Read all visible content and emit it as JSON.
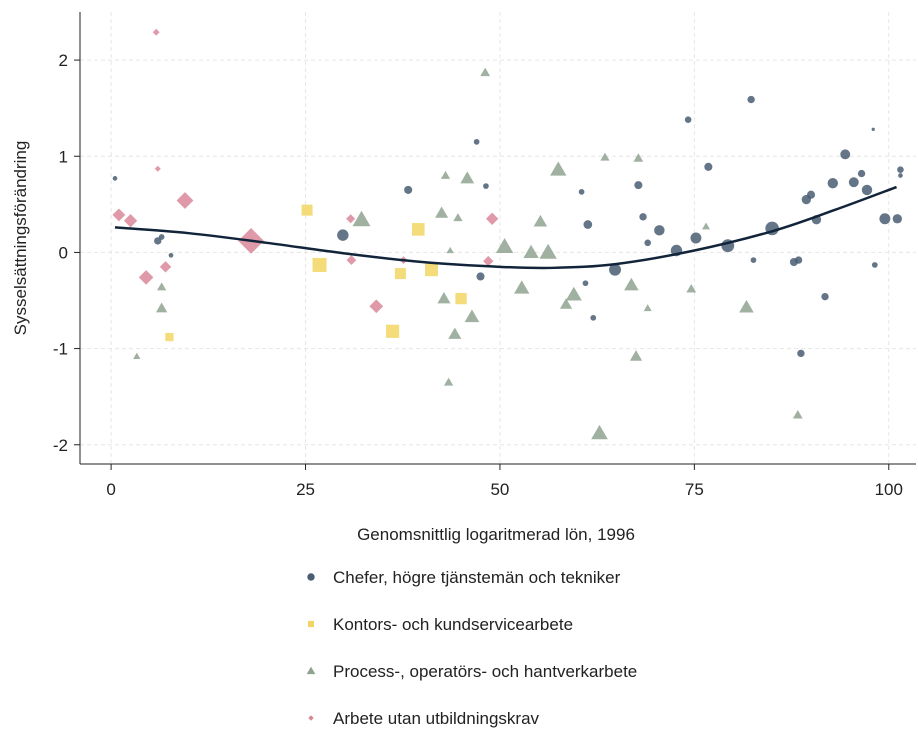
{
  "chart_data": {
    "type": "scatter",
    "title": "",
    "xlabel": "Genomsnittlig logaritmerad lön, 1996",
    "ylabel": "Sysselsättningsförändring",
    "xlim": [
      -4,
      103.5
    ],
    "ylim": [
      -2.2,
      2.5
    ],
    "xticks": [
      0,
      25,
      50,
      75,
      100
    ],
    "yticks": [
      -2,
      -1,
      0,
      1,
      2
    ],
    "grid": true,
    "legend_position": "bottom",
    "series": [
      {
        "name": "Chefer, högre tjänstemän och tekniker",
        "marker": "circle",
        "color": "#4a5d73",
        "points": [
          {
            "x": 0.5,
            "y": 0.77,
            "size": 2
          },
          {
            "x": 6,
            "y": 0.12,
            "size": 5
          },
          {
            "x": 6.5,
            "y": 0.16,
            "size": 3
          },
          {
            "x": 7.7,
            "y": -0.03,
            "size": 2
          },
          {
            "x": 29.8,
            "y": 0.18,
            "size": 12
          },
          {
            "x": 38.2,
            "y": 0.65,
            "size": 6
          },
          {
            "x": 47,
            "y": 1.15,
            "size": 3
          },
          {
            "x": 47.5,
            "y": -0.25,
            "size": 6
          },
          {
            "x": 48.2,
            "y": 0.69,
            "size": 3
          },
          {
            "x": 60.5,
            "y": 0.63,
            "size": 3
          },
          {
            "x": 61,
            "y": -0.32,
            "size": 3
          },
          {
            "x": 61.3,
            "y": 0.29,
            "size": 7
          },
          {
            "x": 62,
            "y": -0.68,
            "size": 3
          },
          {
            "x": 64.8,
            "y": -0.18,
            "size": 13
          },
          {
            "x": 67.8,
            "y": 0.7,
            "size": 6
          },
          {
            "x": 68.4,
            "y": 0.37,
            "size": 5
          },
          {
            "x": 69,
            "y": 0.1,
            "size": 4
          },
          {
            "x": 70.5,
            "y": 0.23,
            "size": 10
          },
          {
            "x": 72.7,
            "y": 0.02,
            "size": 12
          },
          {
            "x": 74.2,
            "y": 1.38,
            "size": 4
          },
          {
            "x": 75.2,
            "y": 0.15,
            "size": 11
          },
          {
            "x": 76.8,
            "y": 0.89,
            "size": 6
          },
          {
            "x": 79.3,
            "y": 0.07,
            "size": 15
          },
          {
            "x": 82.3,
            "y": 1.59,
            "size": 5
          },
          {
            "x": 82.6,
            "y": -0.08,
            "size": 3
          },
          {
            "x": 85,
            "y": 0.25,
            "size": 17
          },
          {
            "x": 87.8,
            "y": -0.1,
            "size": 6
          },
          {
            "x": 88.4,
            "y": -0.08,
            "size": 5
          },
          {
            "x": 88.7,
            "y": -1.05,
            "size": 5
          },
          {
            "x": 89.4,
            "y": 0.55,
            "size": 8
          },
          {
            "x": 90,
            "y": 0.6,
            "size": 6
          },
          {
            "x": 90.7,
            "y": 0.34,
            "size": 8
          },
          {
            "x": 91.8,
            "y": -0.46,
            "size": 5
          },
          {
            "x": 92.8,
            "y": 0.72,
            "size": 10
          },
          {
            "x": 94.4,
            "y": 1.02,
            "size": 9
          },
          {
            "x": 95.5,
            "y": 0.73,
            "size": 9
          },
          {
            "x": 96.5,
            "y": 0.82,
            "size": 5
          },
          {
            "x": 97.2,
            "y": 0.65,
            "size": 10
          },
          {
            "x": 98,
            "y": 1.28,
            "size": 1
          },
          {
            "x": 98.2,
            "y": -0.13,
            "size": 3
          },
          {
            "x": 99.5,
            "y": 0.35,
            "size": 11
          },
          {
            "x": 101.1,
            "y": 0.35,
            "size": 8
          },
          {
            "x": 101.5,
            "y": 0.86,
            "size": 4
          },
          {
            "x": 101.5,
            "y": 0.8,
            "size": 2
          }
        ]
      },
      {
        "name": "Kontors- och kundservicearbete",
        "marker": "square",
        "color": "#f2d663",
        "points": [
          {
            "x": 7.5,
            "y": -0.88,
            "size": 9
          },
          {
            "x": 25.2,
            "y": 0.44,
            "size": 16
          },
          {
            "x": 26.8,
            "y": -0.13,
            "size": 26
          },
          {
            "x": 37.2,
            "y": -0.22,
            "size": 16
          },
          {
            "x": 39.5,
            "y": 0.24,
            "size": 21
          },
          {
            "x": 41.2,
            "y": -0.18,
            "size": 22
          },
          {
            "x": 45,
            "y": -0.48,
            "size": 17
          },
          {
            "x": 36.2,
            "y": -0.82,
            "size": 23
          }
        ]
      },
      {
        "name": "Process-, operatörs- och hantverkarbete",
        "marker": "triangle",
        "color": "#8fa391",
        "points": [
          {
            "x": 3.3,
            "y": -1.08,
            "size": 5
          },
          {
            "x": 6.5,
            "y": -0.36,
            "size": 8
          },
          {
            "x": 6.5,
            "y": -0.58,
            "size": 12
          },
          {
            "x": 32.2,
            "y": 0.34,
            "size": 30
          },
          {
            "x": 42.5,
            "y": 0.41,
            "size": 16
          },
          {
            "x": 42.8,
            "y": -0.48,
            "size": 16
          },
          {
            "x": 43,
            "y": 0.8,
            "size": 8
          },
          {
            "x": 43.4,
            "y": -1.35,
            "size": 8
          },
          {
            "x": 43.6,
            "y": 0.02,
            "size": 5
          },
          {
            "x": 44.2,
            "y": -0.85,
            "size": 16
          },
          {
            "x": 44.6,
            "y": 0.36,
            "size": 8
          },
          {
            "x": 45.8,
            "y": 0.77,
            "size": 18
          },
          {
            "x": 46.4,
            "y": -0.67,
            "size": 20
          },
          {
            "x": 48.1,
            "y": 1.87,
            "size": 9
          },
          {
            "x": 50.6,
            "y": 0.06,
            "size": 28
          },
          {
            "x": 52.8,
            "y": -0.37,
            "size": 22
          },
          {
            "x": 54,
            "y": 0,
            "size": 22
          },
          {
            "x": 55.2,
            "y": 0.32,
            "size": 17
          },
          {
            "x": 56.2,
            "y": 0,
            "size": 28
          },
          {
            "x": 57.5,
            "y": 0.86,
            "size": 25
          },
          {
            "x": 58.5,
            "y": -0.54,
            "size": 14
          },
          {
            "x": 59.5,
            "y": -0.44,
            "size": 24
          },
          {
            "x": 62.8,
            "y": -1.88,
            "size": 26
          },
          {
            "x": 63.5,
            "y": 0.99,
            "size": 8
          },
          {
            "x": 66.9,
            "y": -0.34,
            "size": 20
          },
          {
            "x": 67.5,
            "y": -1.08,
            "size": 14
          },
          {
            "x": 67.8,
            "y": 0.98,
            "size": 9
          },
          {
            "x": 69,
            "y": -0.58,
            "size": 6
          },
          {
            "x": 74.6,
            "y": -0.38,
            "size": 9
          },
          {
            "x": 76.5,
            "y": 0.27,
            "size": 6
          },
          {
            "x": 81.7,
            "y": -0.57,
            "size": 20
          },
          {
            "x": 88.3,
            "y": -1.69,
            "size": 9
          }
        ]
      },
      {
        "name": "Arbete utan utbildningskrav",
        "marker": "diamond",
        "color": "#d98799",
        "points": [
          {
            "x": 1,
            "y": 0.39,
            "size": 14
          },
          {
            "x": 2.5,
            "y": 0.33,
            "size": 15
          },
          {
            "x": 4.5,
            "y": -0.26,
            "size": 18
          },
          {
            "x": 5.8,
            "y": 2.29,
            "size": 4
          },
          {
            "x": 6,
            "y": 0.87,
            "size": 3
          },
          {
            "x": 7,
            "y": -0.15,
            "size": 11
          },
          {
            "x": 9.5,
            "y": 0.54,
            "size": 24
          },
          {
            "x": 18,
            "y": 0.12,
            "size": 56
          },
          {
            "x": 30.8,
            "y": 0.35,
            "size": 7
          },
          {
            "x": 30.9,
            "y": -0.08,
            "size": 8
          },
          {
            "x": 34.1,
            "y": -0.56,
            "size": 16
          },
          {
            "x": 37.6,
            "y": -0.08,
            "size": 5
          },
          {
            "x": 48.5,
            "y": -0.09,
            "size": 9
          },
          {
            "x": 49,
            "y": 0.35,
            "size": 13
          }
        ]
      }
    ],
    "fit_line": {
      "color": "#12243a",
      "points": [
        {
          "x": 0.5,
          "y": 0.26
        },
        {
          "x": 10,
          "y": 0.2
        },
        {
          "x": 20,
          "y": 0.1
        },
        {
          "x": 30,
          "y": -0.01
        },
        {
          "x": 40,
          "y": -0.1
        },
        {
          "x": 50,
          "y": -0.15
        },
        {
          "x": 57,
          "y": -0.16
        },
        {
          "x": 65,
          "y": -0.12
        },
        {
          "x": 75,
          "y": 0.02
        },
        {
          "x": 85,
          "y": 0.22
        },
        {
          "x": 93,
          "y": 0.44
        },
        {
          "x": 101,
          "y": 0.68
        }
      ]
    }
  }
}
